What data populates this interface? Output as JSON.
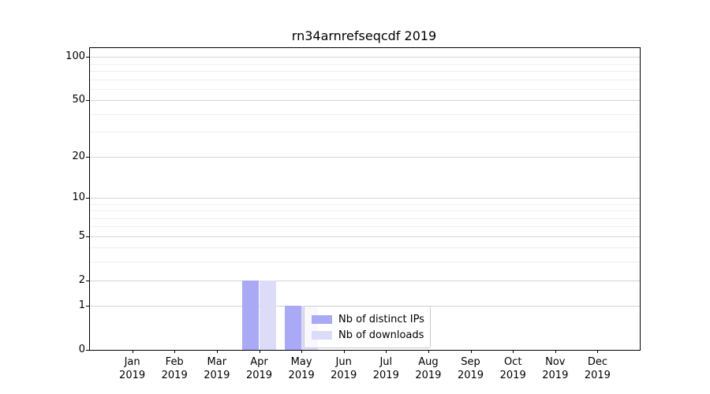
{
  "chart_data": {
    "type": "bar",
    "title": "rn34arnrefseqcdf 2019",
    "categories": [
      "Jan",
      "Feb",
      "Mar",
      "Apr",
      "May",
      "Jun",
      "Jul",
      "Aug",
      "Sep",
      "Oct",
      "Nov",
      "Dec"
    ],
    "category_year": "2019",
    "series": [
      {
        "name": "Nb of distinct IPs",
        "color": "#a9a9f5",
        "values": [
          0,
          0,
          0,
          2,
          1,
          0,
          0,
          0,
          0,
          0,
          0,
          0
        ]
      },
      {
        "name": "Nb of downloads",
        "color": "#dcdcf9",
        "values": [
          0,
          0,
          0,
          2,
          1,
          0,
          0,
          0,
          0,
          0,
          0,
          0
        ]
      }
    ],
    "xlabel": "",
    "ylabel": "",
    "yscale": "log1p",
    "ylim": [
      0,
      115
    ],
    "y_ticks": [
      0,
      1,
      2,
      5,
      10,
      20,
      50,
      100
    ],
    "y_minor_gridlines": [
      3,
      4,
      6,
      7,
      8,
      9,
      30,
      40,
      60,
      70,
      80,
      90
    ],
    "grid": true,
    "legend_position": "lower center"
  },
  "colors": {
    "axis": "#000000",
    "major_grid": "#d4d4d4",
    "minor_grid": "#efefef",
    "legend_border": "#cccccc",
    "background": "#ffffff"
  }
}
